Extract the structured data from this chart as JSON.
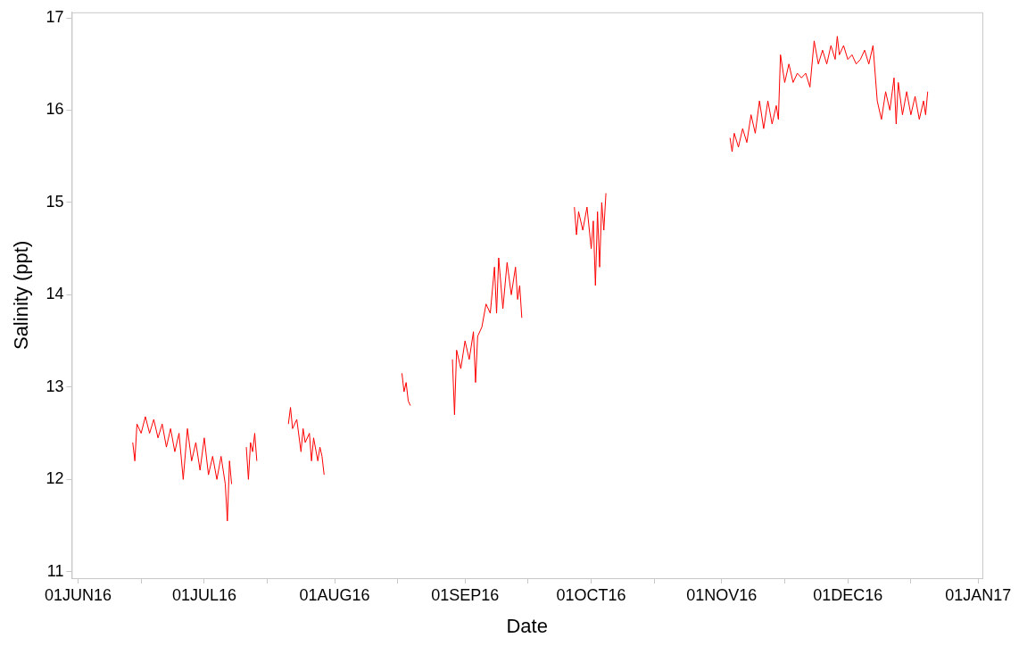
{
  "chart_data": {
    "type": "line",
    "xlabel": "Date",
    "ylabel": "Salinity (ppt)",
    "marker": "none",
    "legend": false,
    "grid": false,
    "xlim": [
      "2016-05-30T12:00",
      "2017-01-02"
    ],
    "ylim": [
      10.93,
      17.06
    ],
    "xticks": [
      {
        "value": "2016-06-01",
        "label": "01JUN16"
      },
      {
        "value": "2016-06-16",
        "label": null
      },
      {
        "value": "2016-07-01",
        "label": "01JUL16"
      },
      {
        "value": "2016-07-16",
        "label": null
      },
      {
        "value": "2016-08-01",
        "label": "01AUG16"
      },
      {
        "value": "2016-08-16",
        "label": null
      },
      {
        "value": "2016-09-01",
        "label": "01SEP16"
      },
      {
        "value": "2016-09-16",
        "label": null
      },
      {
        "value": "2016-10-01",
        "label": "01OCT16"
      },
      {
        "value": "2016-10-16",
        "label": null
      },
      {
        "value": "2016-11-01",
        "label": "01NOV16"
      },
      {
        "value": "2016-11-16",
        "label": null
      },
      {
        "value": "2016-12-01",
        "label": "01DEC16"
      },
      {
        "value": "2016-12-16",
        "label": null
      },
      {
        "value": "2017-01-01",
        "label": "01JAN17"
      }
    ],
    "yticks": [
      11,
      12,
      13,
      14,
      15,
      16,
      17
    ],
    "x": [
      "2016-06-14",
      "2016-06-14T12:00",
      "2016-06-15",
      "2016-06-16",
      "2016-06-17",
      "2016-06-18",
      "2016-06-19",
      "2016-06-20",
      "2016-06-21",
      "2016-06-22",
      "2016-06-23",
      "2016-06-24",
      "2016-06-25",
      "2016-06-26",
      "2016-06-27",
      "2016-06-28",
      "2016-06-29",
      "2016-06-30",
      "2016-07-01",
      "2016-07-02",
      "2016-07-03",
      "2016-07-04",
      "2016-07-05",
      "2016-07-06",
      "2016-07-06T12:00",
      "2016-07-07",
      "2016-07-07T12:00",
      "2016-07-09",
      "2016-07-11",
      "2016-07-11T12:00",
      "2016-07-12",
      "2016-07-12T12:00",
      "2016-07-13",
      "2016-07-13T12:00",
      "2016-07-17",
      "2016-07-21",
      "2016-07-21T12:00",
      "2016-07-22",
      "2016-07-23",
      "2016-07-24",
      "2016-07-24T12:00",
      "2016-07-25",
      "2016-07-26",
      "2016-07-26T12:00",
      "2016-07-27",
      "2016-07-28",
      "2016-07-28T12:00",
      "2016-07-29",
      "2016-07-29T12:00",
      "2016-08-05",
      "2016-08-17",
      "2016-08-17T12:00",
      "2016-08-18",
      "2016-08-18T12:00",
      "2016-08-19",
      "2016-08-24",
      "2016-08-29",
      "2016-08-29T12:00",
      "2016-08-30",
      "2016-08-31",
      "2016-09-01",
      "2016-09-02",
      "2016-09-03",
      "2016-09-03T12:00",
      "2016-09-04",
      "2016-09-05",
      "2016-09-06",
      "2016-09-07",
      "2016-09-08",
      "2016-09-08T12:00",
      "2016-09-09",
      "2016-09-10",
      "2016-09-11",
      "2016-09-12",
      "2016-09-13",
      "2016-09-13T12:00",
      "2016-09-14",
      "2016-09-14T12:00",
      "2016-09-21",
      "2016-09-27",
      "2016-09-27T12:00",
      "2016-09-28",
      "2016-09-29",
      "2016-09-30",
      "2016-10-01",
      "2016-10-01T12:00",
      "2016-10-02",
      "2016-10-02T12:00",
      "2016-10-03",
      "2016-10-03T12:00",
      "2016-10-04",
      "2016-10-04T12:00",
      "2016-10-15",
      "2016-11-03",
      "2016-11-03T12:00",
      "2016-11-04",
      "2016-11-05",
      "2016-11-06",
      "2016-11-07",
      "2016-11-08",
      "2016-11-09",
      "2016-11-10",
      "2016-11-11",
      "2016-11-12",
      "2016-11-13",
      "2016-11-14",
      "2016-11-14T12:00",
      "2016-11-15",
      "2016-11-16",
      "2016-11-17",
      "2016-11-18",
      "2016-11-19",
      "2016-11-20",
      "2016-11-21",
      "2016-11-22",
      "2016-11-23",
      "2016-11-24",
      "2016-11-25",
      "2016-11-26",
      "2016-11-27",
      "2016-11-28",
      "2016-11-28T12:00",
      "2016-11-29",
      "2016-11-30",
      "2016-12-01",
      "2016-12-02",
      "2016-12-03",
      "2016-12-04",
      "2016-12-05",
      "2016-12-06",
      "2016-12-07",
      "2016-12-07T12:00",
      "2016-12-08",
      "2016-12-09",
      "2016-12-10",
      "2016-12-11",
      "2016-12-12",
      "2016-12-12T12:00",
      "2016-12-13",
      "2016-12-14",
      "2016-12-15",
      "2016-12-16",
      "2016-12-17",
      "2016-12-18",
      "2016-12-19",
      "2016-12-19T12:00",
      "2016-12-20"
    ],
    "series": [
      {
        "color": "#ff0000",
        "values": [
          12.4,
          12.2,
          12.6,
          12.5,
          12.68,
          12.5,
          12.65,
          12.45,
          12.6,
          12.35,
          12.55,
          12.3,
          12.5,
          12.0,
          12.55,
          12.2,
          12.4,
          12.1,
          12.45,
          12.05,
          12.25,
          12.0,
          12.25,
          11.95,
          11.55,
          12.2,
          11.95,
          null,
          12.35,
          12.0,
          12.4,
          12.3,
          12.5,
          12.2,
          null,
          12.6,
          12.78,
          12.55,
          12.65,
          12.3,
          12.55,
          12.4,
          12.5,
          12.2,
          12.45,
          12.2,
          12.35,
          12.25,
          12.05,
          null,
          13.15,
          12.95,
          13.05,
          12.85,
          12.8,
          null,
          13.3,
          12.7,
          13.4,
          13.2,
          13.5,
          13.3,
          13.6,
          13.05,
          13.55,
          13.65,
          13.9,
          13.8,
          14.3,
          13.8,
          14.4,
          13.85,
          14.35,
          14.0,
          14.3,
          13.95,
          14.1,
          13.75,
          null,
          14.95,
          14.65,
          14.9,
          14.7,
          14.95,
          14.5,
          14.8,
          14.1,
          14.9,
          14.3,
          15.0,
          14.7,
          15.1,
          null,
          15.7,
          15.55,
          15.75,
          15.6,
          15.8,
          15.65,
          15.95,
          15.75,
          16.1,
          15.8,
          16.1,
          15.85,
          16.05,
          15.9,
          16.6,
          16.3,
          16.5,
          16.3,
          16.4,
          16.35,
          16.4,
          16.25,
          16.75,
          16.5,
          16.65,
          16.5,
          16.7,
          16.55,
          16.8,
          16.6,
          16.7,
          16.55,
          16.6,
          16.5,
          16.55,
          16.65,
          16.5,
          16.7,
          16.4,
          16.1,
          15.9,
          16.2,
          16.0,
          16.35,
          15.85,
          16.3,
          15.95,
          16.2,
          15.95,
          16.15,
          15.9,
          16.1,
          15.95,
          16.2
        ]
      }
    ]
  }
}
